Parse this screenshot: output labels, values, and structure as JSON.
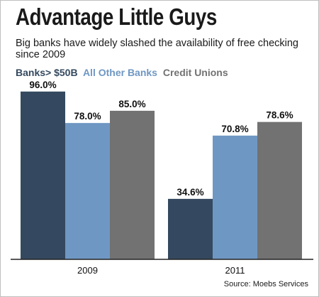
{
  "colors": {
    "banks_large": "#34495f",
    "other_banks": "#6f97c3",
    "credit_unions": "#727272",
    "axis": "#222222"
  },
  "chart_data": {
    "type": "bar",
    "title": "Advantage Little Guys",
    "subtitle": "Big banks have widely slashed the availability of free checking since 2009",
    "categories": [
      "2009",
      "2011"
    ],
    "series": [
      {
        "name": "Banks> $50B",
        "values": [
          96.0,
          34.6
        ],
        "labels": [
          "96.0%",
          "34.6%"
        ]
      },
      {
        "name": "All Other Banks",
        "values": [
          78.0,
          70.8
        ],
        "labels": [
          "78.0%",
          "70.8%"
        ]
      },
      {
        "name": "Credit Unions",
        "values": [
          85.0,
          78.6
        ],
        "labels": [
          "85.0%",
          "78.6%"
        ]
      }
    ],
    "ylim": [
      0,
      100
    ],
    "grid": false,
    "legend_position": "top-left",
    "source": "Source: Moebs Services"
  }
}
